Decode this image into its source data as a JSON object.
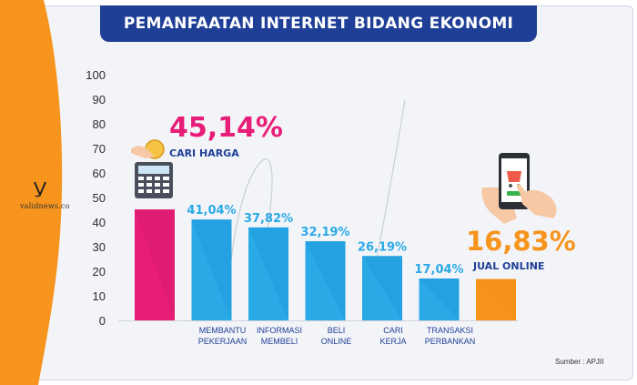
{
  "colors": {
    "frame_bg": "#f3f4f8",
    "title_bg": "#1f3f97",
    "pink": "#e81d77",
    "blue": "#29a9e6",
    "blue_dark": "#1e8fd0",
    "orange": "#f7941d",
    "axis_text": "#2b2b2b"
  },
  "header": {
    "title": "PEMANFAATAN INTERNET BIDANG EKONOMI"
  },
  "watermark": {
    "text": "validnews.co"
  },
  "source": {
    "text": "Sumber : APJII"
  },
  "chart_data": {
    "type": "bar",
    "ylim": [
      0,
      100
    ],
    "yticks": [
      0,
      10,
      20,
      30,
      40,
      50,
      60,
      70,
      80,
      90,
      100
    ],
    "bars": [
      {
        "value": 45.14,
        "label": "45,14%",
        "category": [
          "CARI HARGA"
        ],
        "color": "pink",
        "label_position": "callout-left",
        "category_position": "callout-left"
      },
      {
        "value": 41.04,
        "label": "41,04%",
        "category": [
          "MEMBANTU",
          "PEKERJAAN"
        ],
        "color": "blue"
      },
      {
        "value": 37.82,
        "label": "37,82%",
        "category": [
          "INFORMASI",
          "MEMBELI"
        ],
        "color": "blue"
      },
      {
        "value": 32.19,
        "label": "32,19%",
        "category": [
          "BELI",
          "ONLINE"
        ],
        "color": "blue"
      },
      {
        "value": 26.19,
        "label": "26,19%",
        "category": [
          "CARI",
          "KERJA"
        ],
        "color": "blue"
      },
      {
        "value": 17.04,
        "label": "17,04%",
        "category": [
          "TRANSAKSI",
          "PERBANKAN"
        ],
        "color": "blue"
      },
      {
        "value": 16.83,
        "label": "16,83%",
        "category": [
          "JUAL ONLINE"
        ],
        "color": "orange",
        "label_position": "callout-right",
        "category_position": "callout-right"
      }
    ]
  },
  "icons": [
    "calculator-icon",
    "coin-icon",
    "smartphone-shopping-icon",
    "hand-icon"
  ]
}
